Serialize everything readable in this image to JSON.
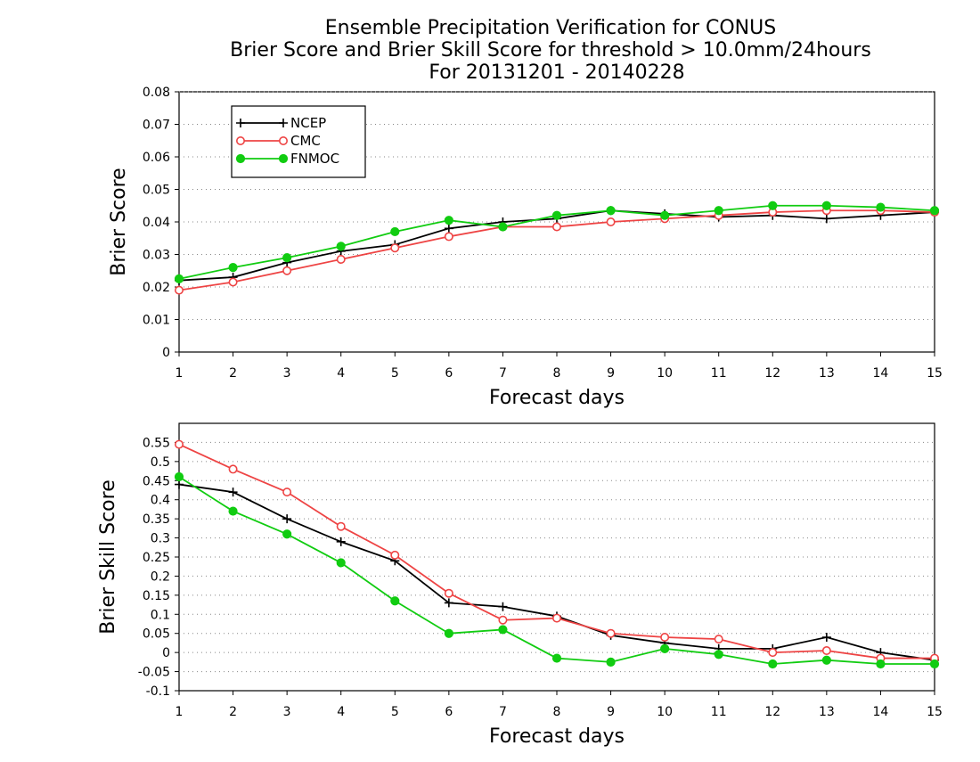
{
  "figure": {
    "title_lines": [
      "Ensemble Precipitation Verification for CONUS",
      "Brier Score and Brier Skill Score for threshold > 10.0mm/24hours",
      "For 20131201 - 20140228"
    ]
  },
  "colors": {
    "NCEP": "#000000",
    "CMC": "#ee4444",
    "FNMOC": "#11cc11"
  },
  "chart_data": [
    {
      "type": "line",
      "title": "",
      "xlabel": "Forecast days",
      "ylabel": "Brier Score",
      "x": [
        1,
        2,
        3,
        4,
        5,
        6,
        7,
        8,
        9,
        10,
        11,
        12,
        13,
        14,
        15
      ],
      "xlim": [
        1,
        15
      ],
      "ylim": [
        0,
        0.08
      ],
      "yticks": [
        "0",
        "0.01",
        "0.02",
        "0.03",
        "0.04",
        "0.05",
        "0.06",
        "0.07",
        "0.08"
      ],
      "ytick_values": [
        0,
        0.01,
        0.02,
        0.03,
        0.04,
        0.05,
        0.06,
        0.07,
        0.08
      ],
      "grid": true,
      "legend": "top-left",
      "series": [
        {
          "name": "NCEP",
          "marker": "plus",
          "values": [
            0.022,
            0.023,
            0.0275,
            0.031,
            0.033,
            0.038,
            0.04,
            0.041,
            0.0435,
            0.0425,
            0.0415,
            0.042,
            0.041,
            0.042,
            0.043
          ]
        },
        {
          "name": "CMC",
          "marker": "open-circle",
          "values": [
            0.019,
            0.0215,
            0.025,
            0.0285,
            0.032,
            0.0355,
            0.0385,
            0.0385,
            0.04,
            0.041,
            0.042,
            0.043,
            0.0435,
            0.0435,
            0.043
          ]
        },
        {
          "name": "FNMOC",
          "marker": "filled-circle",
          "values": [
            0.0225,
            0.026,
            0.029,
            0.0325,
            0.037,
            0.0405,
            0.0385,
            0.042,
            0.0435,
            0.042,
            0.0435,
            0.045,
            0.045,
            0.0445,
            0.0435
          ]
        }
      ]
    },
    {
      "type": "line",
      "title": "",
      "xlabel": "Forecast days",
      "ylabel": "Brier Skill Score",
      "x": [
        1,
        2,
        3,
        4,
        5,
        6,
        7,
        8,
        9,
        10,
        11,
        12,
        13,
        14,
        15
      ],
      "xlim": [
        1,
        15
      ],
      "ylim": [
        -0.1,
        0.6
      ],
      "yticks": [
        "-0.1",
        "-0.05",
        "0",
        "0.05",
        "0.1",
        "0.15",
        "0.2",
        "0.25",
        "0.3",
        "0.35",
        "0.4",
        "0.45",
        "0.5",
        "0.55"
      ],
      "ytick_values": [
        -0.1,
        -0.05,
        0,
        0.05,
        0.1,
        0.15,
        0.2,
        0.25,
        0.3,
        0.35,
        0.4,
        0.45,
        0.5,
        0.55
      ],
      "grid": true,
      "legend": "none",
      "series": [
        {
          "name": "NCEP",
          "marker": "plus",
          "values": [
            0.44,
            0.42,
            0.35,
            0.29,
            0.24,
            0.13,
            0.12,
            0.095,
            0.045,
            0.025,
            0.01,
            0.01,
            0.04,
            0.0,
            -0.02
          ]
        },
        {
          "name": "CMC",
          "marker": "open-circle",
          "values": [
            0.545,
            0.48,
            0.42,
            0.33,
            0.255,
            0.155,
            0.085,
            0.09,
            0.05,
            0.04,
            0.035,
            0.0,
            0.005,
            -0.015,
            -0.015
          ]
        },
        {
          "name": "FNMOC",
          "marker": "filled-circle",
          "values": [
            0.46,
            0.37,
            0.31,
            0.235,
            0.135,
            0.05,
            0.06,
            -0.015,
            -0.025,
            0.01,
            -0.005,
            -0.03,
            -0.02,
            -0.03,
            -0.03
          ]
        }
      ]
    }
  ]
}
